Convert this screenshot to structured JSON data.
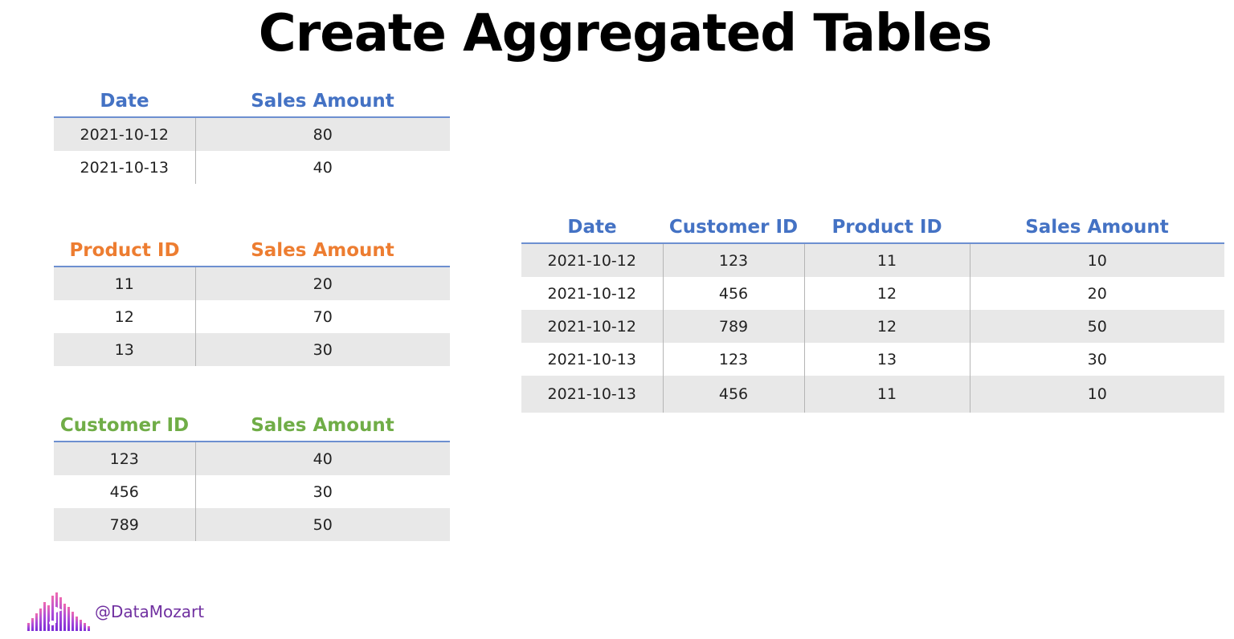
{
  "title": "Create Aggregated Tables",
  "colors": {
    "blue_header": "#4472c4",
    "orange_header": "#ed7d31",
    "green_header": "#70ad47",
    "row_band": "#e8e8e8",
    "brand_purple": "#7030a0"
  },
  "date_agg": {
    "headers": [
      "Date",
      "Sales Amount"
    ],
    "rows": [
      [
        "2021-10-12",
        "80"
      ],
      [
        "2021-10-13",
        "40"
      ]
    ]
  },
  "product_agg": {
    "headers": [
      "Product ID",
      "Sales Amount"
    ],
    "rows": [
      [
        "11",
        "20"
      ],
      [
        "12",
        "70"
      ],
      [
        "13",
        "30"
      ]
    ]
  },
  "customer_agg": {
    "headers": [
      "Customer ID",
      "Sales Amount"
    ],
    "rows": [
      [
        "123",
        "40"
      ],
      [
        "456",
        "30"
      ],
      [
        "789",
        "50"
      ]
    ]
  },
  "detail": {
    "headers": [
      "Date",
      "Customer ID",
      "Product ID",
      "Sales Amount"
    ],
    "rows": [
      [
        "2021-10-12",
        "123",
        "11",
        "10"
      ],
      [
        "2021-10-12",
        "456",
        "12",
        "20"
      ],
      [
        "2021-10-12",
        "789",
        "12",
        "50"
      ],
      [
        "2021-10-13",
        "123",
        "13",
        "30"
      ],
      [
        "2021-10-13",
        "456",
        "11",
        "10"
      ]
    ]
  },
  "brand": {
    "logo_icon": "audio-bars-icon",
    "handle": "@DataMozart"
  }
}
